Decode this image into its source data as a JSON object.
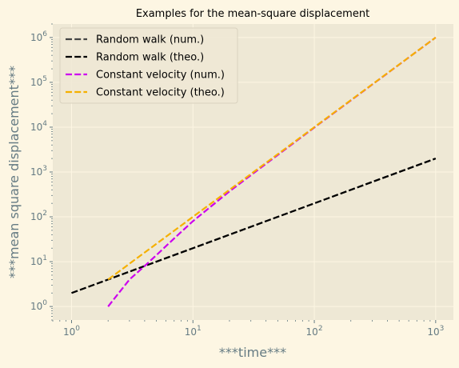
{
  "chart_data": {
    "type": "line",
    "title": "Examples for the mean-square displacement",
    "xlabel": "***time***",
    "ylabel": "***mean square displacement***",
    "xscale": "log",
    "yscale": "log",
    "xlim": [
      0.7,
      1400
    ],
    "ylim": [
      0.5,
      2000000
    ],
    "grid": true,
    "legend_position": "top-left",
    "background": "#eee8d5",
    "x_ticks": [
      1,
      10,
      100,
      1000
    ],
    "x_tick_labels": [
      {
        "base": "10",
        "exp": "0"
      },
      {
        "base": "10",
        "exp": "1"
      },
      {
        "base": "10",
        "exp": "2"
      },
      {
        "base": "10",
        "exp": "3"
      }
    ],
    "y_ticks": [
      1,
      10,
      100,
      1000,
      10000,
      100000,
      1000000
    ],
    "y_tick_labels": [
      {
        "base": "10",
        "exp": "0"
      },
      {
        "base": "10",
        "exp": "1"
      },
      {
        "base": "10",
        "exp": "2"
      },
      {
        "base": "10",
        "exp": "3"
      },
      {
        "base": "10",
        "exp": "4"
      },
      {
        "base": "10",
        "exp": "5"
      },
      {
        "base": "10",
        "exp": "6"
      }
    ],
    "series": [
      {
        "name": "Random walk (num.)",
        "color": "#444444",
        "x": [
          1,
          10,
          100,
          1000
        ],
        "y": [
          2,
          20,
          200,
          2000
        ]
      },
      {
        "name": "Random walk (theo.)",
        "color": "#000000",
        "x": [
          1,
          10,
          100,
          1000
        ],
        "y": [
          2,
          20,
          200,
          2000
        ]
      },
      {
        "name": "Constant velocity (num.)",
        "color": "#cc00ee",
        "x": [
          2,
          3,
          4,
          5,
          7,
          10,
          20,
          50,
          100,
          1000
        ],
        "y": [
          1,
          4,
          8,
          14,
          33,
          80,
          370,
          2400,
          9800,
          1000000
        ]
      },
      {
        "name": "Constant velocity (theo.)",
        "color": "#f5b000",
        "x": [
          2,
          3,
          5,
          10,
          100,
          1000
        ],
        "y": [
          4,
          9,
          25,
          100,
          10000,
          1000000
        ]
      }
    ]
  }
}
